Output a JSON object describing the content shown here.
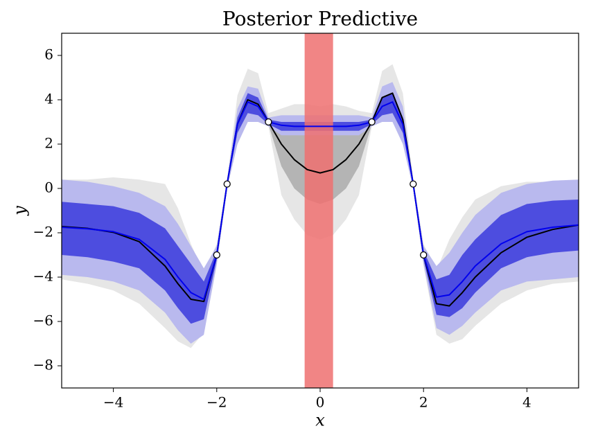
{
  "chart_data": {
    "type": "line",
    "title": "Posterior Predictive",
    "xlabel": "x",
    "ylabel": "y",
    "xlim": [
      -5,
      5
    ],
    "ylim": [
      -9,
      7
    ],
    "xticks": [
      {
        "value": -4,
        "label": "−4"
      },
      {
        "value": -2,
        "label": "−2"
      },
      0,
      2,
      4
    ],
    "yticks": [
      {
        "value": -8,
        "label": "−8"
      },
      {
        "value": -6,
        "label": "−6"
      },
      {
        "value": -4,
        "label": "−4"
      },
      {
        "value": -2,
        "label": "−2"
      },
      0,
      2,
      4,
      6
    ],
    "x": [
      -5,
      -4.5,
      -4,
      -3.5,
      -3,
      -2.75,
      -2.5,
      -2.25,
      -2,
      -1.8,
      -1.6,
      -1.4,
      -1.2,
      -1,
      -0.75,
      -0.5,
      -0.25,
      0,
      0.25,
      0.5,
      0.75,
      1,
      1.2,
      1.4,
      1.6,
      1.8,
      2,
      2.25,
      2.5,
      2.75,
      3,
      3.5,
      4,
      4.5,
      5
    ],
    "bands": [
      {
        "color": "#e6e6e6",
        "lower": [
          -4.1,
          -4.3,
          -4.6,
          -5.2,
          -6.3,
          -6.9,
          -7.2,
          -6.5,
          -3.5,
          0.0,
          2.0,
          3.0,
          3.0,
          2.8,
          -0.3,
          -1.4,
          -2.1,
          -2.3,
          -2.1,
          -1.4,
          -0.3,
          2.8,
          3.1,
          3.2,
          2.0,
          0.0,
          -3.5,
          -6.6,
          -7.0,
          -6.8,
          -6.2,
          -5.2,
          -4.6,
          -4.3,
          -4.2
        ],
        "upper": [
          0.4,
          0.4,
          0.5,
          0.4,
          0.2,
          -0.9,
          -2.5,
          -3.8,
          -2.5,
          0.4,
          4.2,
          5.4,
          5.2,
          3.4,
          3.6,
          3.8,
          3.8,
          3.7,
          3.8,
          3.7,
          3.5,
          3.4,
          5.3,
          5.6,
          4.3,
          0.4,
          -2.5,
          -3.7,
          -2.3,
          -1.3,
          -0.5,
          0.1,
          0.3,
          0.3,
          0.3
        ]
      },
      {
        "color": "#b4b4b4",
        "lower": [
          -3.0,
          -3.1,
          -3.3,
          -3.8,
          -4.7,
          -5.4,
          -5.9,
          -5.6,
          -3.2,
          0.1,
          2.6,
          3.6,
          3.5,
          2.9,
          1.0,
          0.0,
          -0.5,
          -0.7,
          -0.5,
          0.0,
          1.0,
          2.9,
          3.6,
          3.7,
          2.7,
          0.1,
          -3.2,
          -5.8,
          -6.1,
          -5.8,
          -5.4,
          -4.2,
          -3.5,
          -3.1,
          -2.9
        ],
        "upper": [
          -0.5,
          -0.5,
          -0.6,
          -0.9,
          -2.0,
          -2.9,
          -4.0,
          -4.5,
          -2.8,
          0.3,
          3.4,
          4.5,
          4.3,
          3.1,
          2.9,
          2.8,
          2.8,
          2.9,
          2.8,
          2.8,
          2.9,
          3.1,
          4.4,
          4.7,
          3.6,
          0.3,
          -2.8,
          -4.6,
          -4.2,
          -3.3,
          -2.4,
          -1.3,
          -0.9,
          -0.7,
          -0.6
        ]
      },
      {
        "color": "#b9b9ee",
        "lower": [
          -3.9,
          -4.0,
          -4.2,
          -4.6,
          -5.6,
          -6.4,
          -7.0,
          -6.6,
          -3.4,
          0.0,
          2.0,
          3.0,
          3.0,
          2.8,
          2.4,
          2.4,
          2.4,
          2.4,
          2.4,
          2.4,
          2.4,
          2.8,
          3.0,
          3.0,
          2.0,
          0.0,
          -3.4,
          -6.3,
          -6.6,
          -6.2,
          -5.6,
          -4.6,
          -4.2,
          -4.1,
          -4.0
        ],
        "upper": [
          0.4,
          0.3,
          0.1,
          -0.2,
          -0.8,
          -1.6,
          -2.6,
          -3.6,
          -2.6,
          0.4,
          3.6,
          4.6,
          4.5,
          3.2,
          3.3,
          3.3,
          3.3,
          3.3,
          3.3,
          3.3,
          3.3,
          3.2,
          4.6,
          4.8,
          3.7,
          0.4,
          -2.6,
          -3.5,
          -2.9,
          -2.0,
          -1.2,
          -0.2,
          0.2,
          0.35,
          0.4
        ]
      },
      {
        "color": "#4d4ddf",
        "lower": [
          -3.0,
          -3.1,
          -3.3,
          -3.6,
          -4.6,
          -5.4,
          -6.1,
          -5.9,
          -3.2,
          0.1,
          2.5,
          3.4,
          3.3,
          2.9,
          2.6,
          2.6,
          2.6,
          2.6,
          2.6,
          2.6,
          2.6,
          2.9,
          3.3,
          3.4,
          2.5,
          0.1,
          -3.2,
          -5.7,
          -5.8,
          -5.4,
          -4.7,
          -3.6,
          -3.1,
          -2.9,
          -2.8
        ],
        "upper": [
          -0.6,
          -0.7,
          -0.8,
          -1.1,
          -1.8,
          -2.6,
          -3.4,
          -4.2,
          -2.8,
          0.3,
          3.2,
          4.3,
          4.1,
          3.1,
          3.0,
          3.0,
          3.0,
          3.0,
          3.0,
          3.0,
          3.0,
          3.1,
          4.1,
          4.3,
          3.2,
          0.3,
          -2.8,
          -4.1,
          -3.9,
          -3.0,
          -2.3,
          -1.2,
          -0.7,
          -0.55,
          -0.5
        ]
      }
    ],
    "series": [
      {
        "color": "#000000",
        "values": [
          -1.72,
          -1.8,
          -1.98,
          -2.4,
          -3.5,
          -4.3,
          -5.0,
          -5.1,
          -3.0,
          0.2,
          2.9,
          4.0,
          3.8,
          3.0,
          2.0,
          1.3,
          0.85,
          0.7,
          0.85,
          1.3,
          2.0,
          3.0,
          4.1,
          4.3,
          3.1,
          0.2,
          -3.0,
          -5.2,
          -5.3,
          -4.7,
          -4.0,
          -2.9,
          -2.2,
          -1.85,
          -1.65
        ]
      },
      {
        "color": "#0000ee",
        "values": [
          -1.75,
          -1.82,
          -1.95,
          -2.3,
          -3.2,
          -4.0,
          -4.7,
          -5.0,
          -3.0,
          0.2,
          2.9,
          3.9,
          3.7,
          3.0,
          2.85,
          2.8,
          2.8,
          2.8,
          2.8,
          2.8,
          2.85,
          3.0,
          3.7,
          3.9,
          2.9,
          0.2,
          -3.0,
          -4.9,
          -4.8,
          -4.2,
          -3.5,
          -2.5,
          -1.95,
          -1.75,
          -1.65
        ]
      }
    ],
    "region": {
      "x0": -0.3,
      "x1": 0.25,
      "color": "#ef7070"
    },
    "points": {
      "x": [
        -2,
        -1.8,
        -1,
        1,
        1.8,
        2
      ],
      "y": [
        -3,
        0.2,
        3,
        3,
        0.2,
        -3
      ]
    }
  }
}
